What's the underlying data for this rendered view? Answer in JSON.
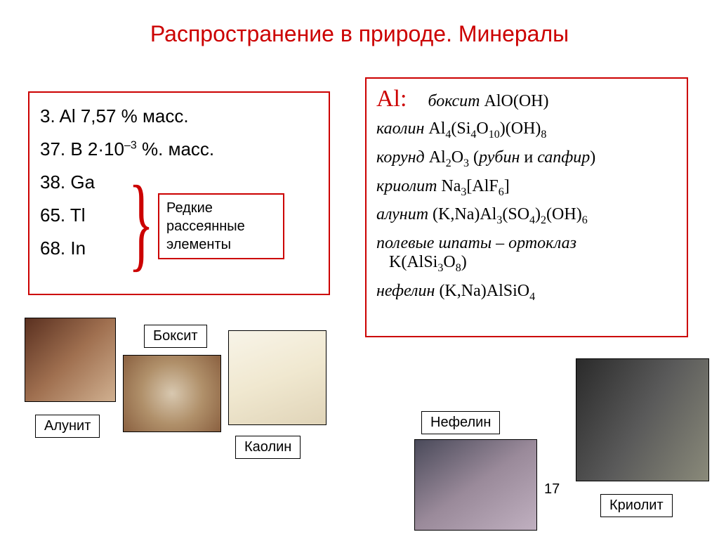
{
  "title": "Распространение в природе. Минералы",
  "left": {
    "l1_prefix": "3. Al  7,57 % масс.",
    "l2_num": "37. B  2·10",
    "l2_exp": "–3",
    "l2_suffix": " %. масс.",
    "l3": "38. Ga",
    "l4": "65. Tl",
    "l5": "68.  In"
  },
  "rare_box": "Редкие рассеянные элементы",
  "al_label": "Al:",
  "right": {
    "boksit_name": "боксит",
    "boksit_formula": " AlO(OH)",
    "kaolin_name": "каолин",
    "kaolin_f1": " Al",
    "kaolin_s1": "4",
    "kaolin_f2": "(Si",
    "kaolin_s2": "4",
    "kaolin_f3": "O",
    "kaolin_s3": "10",
    "kaolin_f4": ")(OH)",
    "kaolin_s4": "8",
    "korund_name": "корунд",
    "korund_f1": " Al",
    "korund_s1": "2",
    "korund_f2": "O",
    "korund_s2": "3",
    "korund_note_open": " (",
    "korund_ruby": "рубин",
    "korund_and": " и ",
    "korund_sapphire": "сапфир",
    "korund_close": ")",
    "cryo_name": "криолит",
    "cryo_f1": " Na",
    "cryo_s1": "3",
    "cryo_f2": "[AlF",
    "cryo_s2": "6",
    "cryo_f3": "]",
    "alunit_name": "алунит",
    "alunit_f1": " (K,Na)Al",
    "alunit_s1": "3",
    "alunit_f2": "(SO",
    "alunit_s2": "4",
    "alunit_f3": ")",
    "alunit_s3": "2",
    "alunit_f4": "(OH)",
    "alunit_s4": "6",
    "feldspar_name": "полевые шпаты – ортоклаз",
    "feldspar_f1": "K(AlSi",
    "feldspar_s1": "3",
    "feldspar_f2": "O",
    "feldspar_s2": "8",
    "feldspar_f3": ")",
    "nefelin_name": "нефелин",
    "nefelin_f1": " (K,Na)AlSiO",
    "nefelin_s1": "4"
  },
  "labels": {
    "alunit": "Алунит",
    "boksit": "Боксит",
    "kaolin": "Каолин",
    "nefelin": "Нефелин",
    "cryolite": "Криолит"
  },
  "page_num": "17"
}
